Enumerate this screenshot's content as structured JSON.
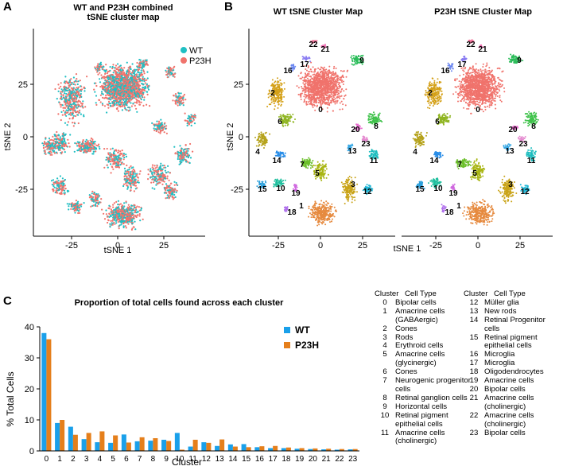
{
  "panel_a": {
    "letter": "A",
    "title_line1": "WT and P23H combined",
    "title_line2": "tSNE cluster map",
    "xlabel": "tSNE 1",
    "ylabel": "tSNE 2",
    "x_ticks": [
      "-25",
      "0",
      "25"
    ],
    "y_ticks": [
      "25",
      "0",
      "-25"
    ],
    "legend": [
      {
        "name": "WT",
        "color": "#1fbfc3"
      },
      {
        "name": "P23H",
        "color": "#f0736c"
      }
    ]
  },
  "panel_b": {
    "letter": "B",
    "left_title": "WT tSNE Cluster Map",
    "right_title": "P23H tSNE Cluster Map",
    "xlabel": "tSNE 1",
    "ylabel": "tSNE 2",
    "x_ticks": [
      "-25",
      "0",
      "25"
    ],
    "y_ticks": [
      "25",
      "0",
      "-25"
    ],
    "cluster_labels": [
      "0",
      "1",
      "2",
      "3",
      "4",
      "5",
      "6",
      "7",
      "8",
      "9",
      "10",
      "11",
      "12",
      "13",
      "14",
      "15",
      "16",
      "17",
      "18",
      "19",
      "20",
      "21",
      "22",
      "23"
    ]
  },
  "panel_c": {
    "letter": "C",
    "title": "Proportion of total cells found across each cluster",
    "table_header_cluster": "Cluster",
    "table_header_type": "Cell Type",
    "cell_types_left": [
      {
        "cluster": "0",
        "type": "Bipolar cells"
      },
      {
        "cluster": "1",
        "type": "Amacrine cells (GABAergic)"
      },
      {
        "cluster": "2",
        "type": "Cones"
      },
      {
        "cluster": "3",
        "type": "Rods"
      },
      {
        "cluster": "4",
        "type": "Erythroid cells"
      },
      {
        "cluster": "5",
        "type": "Amacrine cells (glycinergic)"
      },
      {
        "cluster": "6",
        "type": "Cones"
      },
      {
        "cluster": "7",
        "type": "Neurogenic progenitor cells"
      },
      {
        "cluster": "8",
        "type": "Retinal ganglion cells"
      },
      {
        "cluster": "9",
        "type": "Horizontal cells"
      },
      {
        "cluster": "10",
        "type": "Retinal pigment epithelial cells"
      },
      {
        "cluster": "11",
        "type": "Amacrine cells (cholinergic)"
      }
    ],
    "cell_types_right": [
      {
        "cluster": "12",
        "type": "Müller glia"
      },
      {
        "cluster": "13",
        "type": "New rods"
      },
      {
        "cluster": "14",
        "type": "Retinal Progenitor cells"
      },
      {
        "cluster": "15",
        "type": "Retinal pigment epithelial cells"
      },
      {
        "cluster": "16",
        "type": "Microglia"
      },
      {
        "cluster": "17",
        "type": "Microglia"
      },
      {
        "cluster": "18",
        "type": "Oligodendrocytes"
      },
      {
        "cluster": "19",
        "type": "Amacrine cells"
      },
      {
        "cluster": "20",
        "type": "Bipolar cells"
      },
      {
        "cluster": "21",
        "type": "Amacrine cells (cholinergic)"
      },
      {
        "cluster": "22",
        "type": "Amacrine cells (cholinergic)"
      },
      {
        "cluster": "23",
        "type": "Bipolar cells"
      }
    ]
  },
  "chart_data": {
    "type": "bar",
    "title": "Proportion of total cells found across each cluster",
    "xlabel": "Cluster",
    "ylabel": "% Total Cells",
    "ylim": [
      0,
      40
    ],
    "y_ticks": [
      0,
      10,
      20,
      30,
      40
    ],
    "grid": false,
    "legend_position": "top-right",
    "categories": [
      "0",
      "1",
      "2",
      "3",
      "4",
      "5",
      "6",
      "7",
      "8",
      "9",
      "10",
      "11",
      "12",
      "13",
      "14",
      "15",
      "16",
      "17",
      "18",
      "19",
      "20",
      "21",
      "22",
      "23"
    ],
    "series": [
      {
        "name": "WT",
        "color": "#1aa0ea",
        "values": [
          38,
          9,
          7.8,
          3.8,
          2.8,
          2.6,
          5.3,
          3.1,
          3.3,
          3.6,
          5.8,
          1.4,
          2.8,
          1.6,
          2.1,
          2.2,
          1.2,
          0.9,
          0.9,
          0.7,
          0.6,
          0.5,
          0.4,
          0.5
        ]
      },
      {
        "name": "P23H",
        "color": "#e57f1b",
        "values": [
          36,
          10,
          5.2,
          5.8,
          6.3,
          5,
          2.7,
          4.4,
          4.1,
          3.2,
          0.4,
          3.6,
          2.6,
          3.7,
          1.4,
          1.2,
          1.5,
          1.6,
          1.1,
          0.9,
          0.8,
          0.7,
          0.6,
          0.6
        ]
      }
    ]
  }
}
